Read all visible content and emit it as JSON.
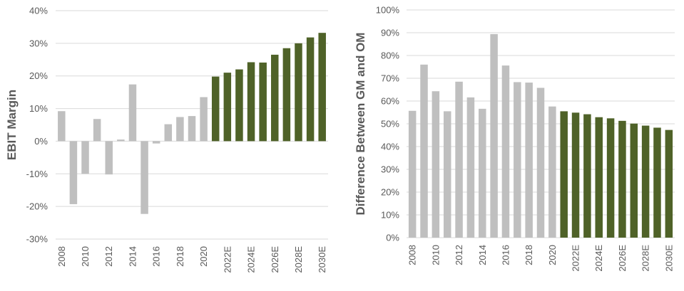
{
  "colors": {
    "historical": "#bfbfbf",
    "forecast": "#4f6228",
    "grid": "#d9d9d9",
    "text": "#595959"
  },
  "chart_data": [
    {
      "type": "bar",
      "ylabel": "EBIT Margin",
      "ylim": [
        -30,
        40
      ],
      "yticks": [
        "-30%",
        "-20%",
        "-10%",
        "0%",
        "10%",
        "20%",
        "30%",
        "40%"
      ],
      "ytick_values": [
        -30,
        -20,
        -10,
        0,
        10,
        20,
        30,
        40
      ],
      "categories": [
        "2008",
        "2009",
        "2010",
        "2011",
        "2012",
        "2013",
        "2014",
        "2015",
        "2016",
        "2017",
        "2018",
        "2019",
        "2020",
        "2021",
        "2022E",
        "2023E",
        "2024E",
        "2025E",
        "2026E",
        "2027E",
        "2028E",
        "2029E",
        "2030E"
      ],
      "xtick_labels": [
        "2008",
        "2010",
        "2012",
        "2014",
        "2016",
        "2018",
        "2020",
        "2022E",
        "2024E",
        "2026E",
        "2028E",
        "2030E"
      ],
      "values": [
        9.2,
        -19.3,
        -10,
        6.8,
        -10.2,
        0.5,
        17.4,
        -22.3,
        -0.7,
        5.2,
        7.4,
        7.7,
        13.5,
        19.8,
        21,
        22,
        24.2,
        24.1,
        26.5,
        28.5,
        30,
        31.8,
        33.2
      ],
      "forecast_from_index": 13,
      "grid": true
    },
    {
      "type": "bar",
      "ylabel": "Difference Between GM and OM",
      "ylim": [
        0,
        100
      ],
      "yticks": [
        "0%",
        "10%",
        "20%",
        "30%",
        "40%",
        "50%",
        "60%",
        "70%",
        "80%",
        "90%",
        "100%"
      ],
      "ytick_values": [
        0,
        10,
        20,
        30,
        40,
        50,
        60,
        70,
        80,
        90,
        100
      ],
      "categories": [
        "2008",
        "2009",
        "2010",
        "2011",
        "2012",
        "2013",
        "2014",
        "2015",
        "2016",
        "2017",
        "2018",
        "2019",
        "2020",
        "2021",
        "2022E",
        "2023E",
        "2024E",
        "2025E",
        "2026E",
        "2027E",
        "2028E",
        "2029E",
        "2030E"
      ],
      "xtick_labels": [
        "2008",
        "2010",
        "2012",
        "2014",
        "2016",
        "2018",
        "2020",
        "2022E",
        "2024E",
        "2026E",
        "2028E",
        "2030E"
      ],
      "values": [
        55.7,
        76,
        64.3,
        55.5,
        68.5,
        61.6,
        56.6,
        89.4,
        75.6,
        68.3,
        68.1,
        65.8,
        57.6,
        55.5,
        54.9,
        54.2,
        52.9,
        52.4,
        51.3,
        50.1,
        49.2,
        48.3,
        47.3
      ],
      "forecast_from_index": 13,
      "grid": true
    }
  ]
}
